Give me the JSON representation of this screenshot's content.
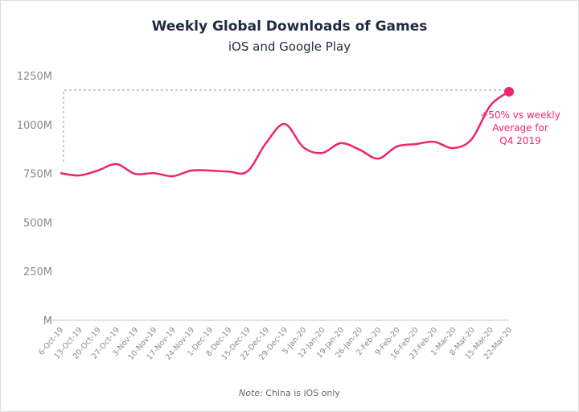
{
  "chart_data": {
    "type": "line",
    "title": "Weekly Global Downloads of Games",
    "subtitle": "iOS and Google Play",
    "note_label": "Note:",
    "note_text": " China is iOS only",
    "annotation": [
      "+50% vs weekly",
      "Average for",
      "Q4 2019"
    ],
    "ylim": [
      0,
      1250
    ],
    "yticks": [
      0,
      250,
      500,
      750,
      1000,
      1250
    ],
    "ytick_labels": [
      "M",
      "250M",
      "500M",
      "750M",
      "1000M",
      "1250M"
    ],
    "categories": [
      "6-Oct-19",
      "13-Oct-19",
      "20-Oct-19",
      "27-Oct-19",
      "3-Nov-19",
      "10-Nov-19",
      "17-Nov-19",
      "24-Nov-19",
      "1-Dec-19",
      "8-Dec-19",
      "15-Dec-19",
      "22-Dec-19",
      "29-Dec-19",
      "5-Jan-20",
      "12-Jan-20",
      "19-Jan-20",
      "26-Jan-20",
      "2-Feb-20",
      "9-Feb-20",
      "16-Feb-20",
      "23-Feb-20",
      "1-Mar-20",
      "8-Mar-20",
      "15-Mar-20",
      "22-Mar-20"
    ],
    "values": [
      752,
      740,
      765,
      798,
      748,
      752,
      736,
      765,
      765,
      760,
      760,
      905,
      1003,
      884,
      855,
      905,
      872,
      826,
      888,
      900,
      912,
      880,
      925,
      1097,
      1168
    ],
    "grid": false,
    "colors": {
      "line": "#f0246e",
      "axis": "#c8c8c8",
      "tick_text": "#8a8a8a",
      "title": "#1f2a44"
    }
  }
}
